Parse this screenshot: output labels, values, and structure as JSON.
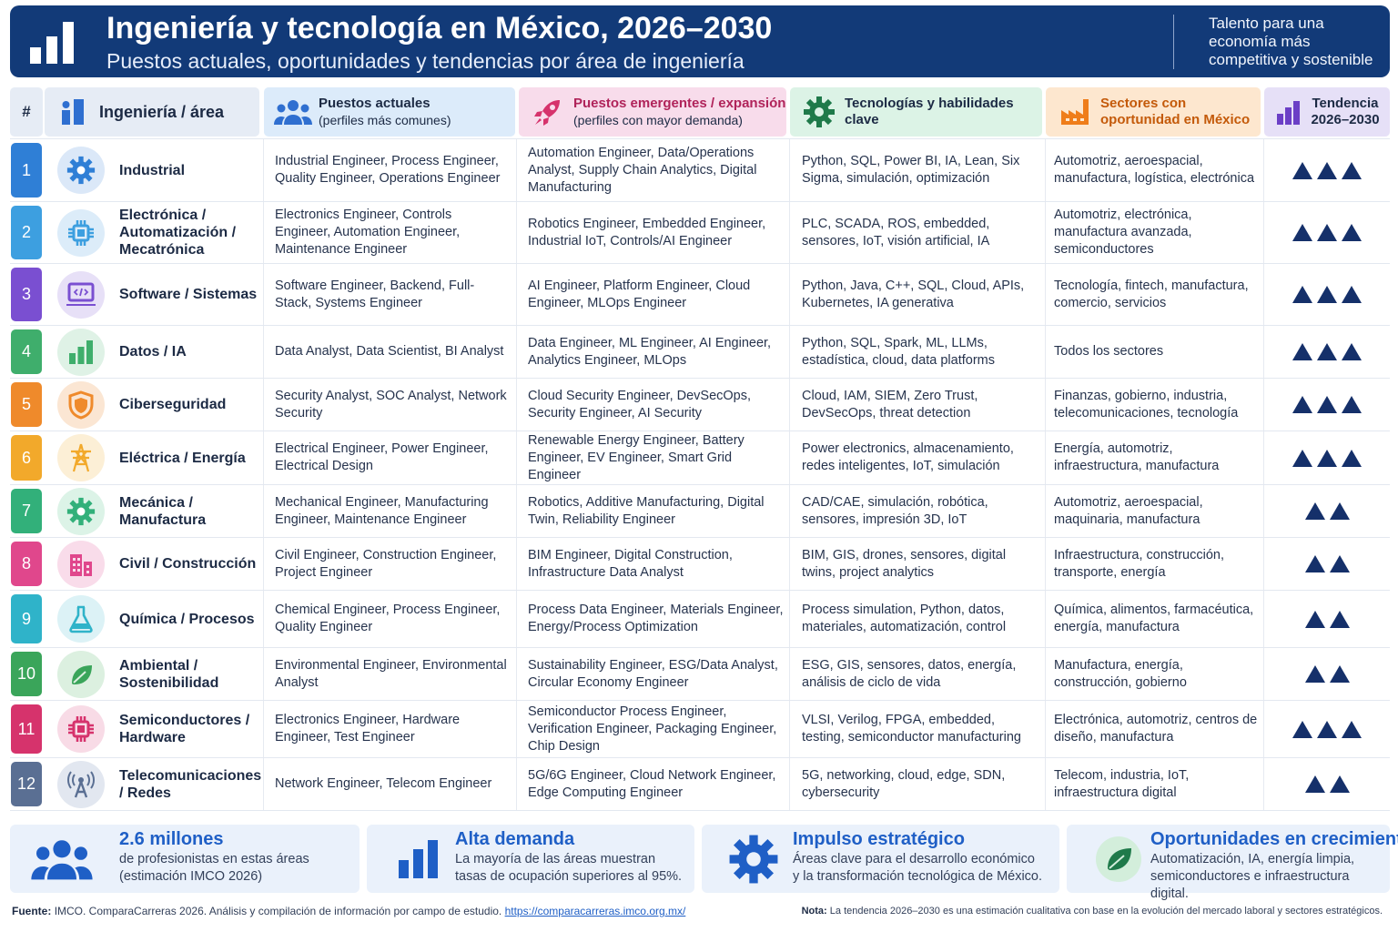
{
  "header": {
    "title": "Ingeniería y tecnología en México, 2026–2030",
    "subtitle": "Puestos actuales, oportunidades y tendencias por área de ingeniería",
    "tagline": "Talento para una economía más competitiva y sostenible"
  },
  "columns": {
    "num": "#",
    "area": "Ingeniería / área",
    "actuales": "Puestos actuales",
    "actuales_sub": "(perfiles más comunes)",
    "emergentes": "Puestos emergentes / expansión",
    "emergentes_sub": "(perfiles con mayor demanda)",
    "tecnologias": "Tecnologías y habilidades clave",
    "sectores": "Sectores con oportunidad en México",
    "tendencia": "Tendencia 2026–2030"
  },
  "colors": {
    "header_bg": "#123a78",
    "actuales_bg": "#dcebfa",
    "emergentes_bg": "#f8dceb",
    "tecnologias_bg": "#dcf3e6",
    "sectores_bg": "#fde7cf",
    "tendencia_bg": "#e6e0f7",
    "triangle": "#15306a"
  },
  "rows": [
    {
      "num": "1",
      "area": "Industrial",
      "icon": "gear-icon",
      "color": "#2f7fd6",
      "icon_bg": "#dbe8f8",
      "actuales": "Industrial Engineer, Process Engineer, Quality Engineer, Operations Engineer",
      "emergentes": "Automation Engineer, Data/Operations Analyst, Supply Chain Analytics, Digital Manufacturing",
      "tecnologias": "Python, SQL, Power BI, IA, Lean, Six Sigma, simulación, optimización",
      "sectores": "Automotriz, aeroespacial, manufactura, logística, electrónica",
      "tendencia": 3
    },
    {
      "num": "2",
      "area": "Electrónica / Automatización / Mecatrónica",
      "icon": "chip-icon",
      "color": "#3d9fe0",
      "icon_bg": "#dcecf9",
      "actuales": "Electronics Engineer, Controls Engineer, Automation Engineer, Maintenance Engineer",
      "emergentes": "Robotics Engineer, Embedded Engineer, Industrial IoT, Controls/AI Engineer",
      "tecnologias": "PLC, SCADA, ROS, embedded, sensores, IoT, visión artificial, IA",
      "sectores": "Automotriz, electrónica, manufactura avanzada, semiconductores",
      "tendencia": 3
    },
    {
      "num": "3",
      "area": "Software / Sistemas",
      "icon": "laptop-code-icon",
      "color": "#7a4fd1",
      "icon_bg": "#e7e0f7",
      "actuales": "Software Engineer, Backend, Full-Stack, Systems Engineer",
      "emergentes": "AI Engineer, Platform Engineer, Cloud Engineer, MLOps Engineer",
      "tecnologias": "Python, Java, C++, SQL, Cloud, APIs, Kubernetes, IA generativa",
      "sectores": "Tecnología, fintech, manufactura, comercio, servicios",
      "tendencia": 3
    },
    {
      "num": "4",
      "area": "Datos / IA",
      "icon": "bar-chart-icon",
      "color": "#3fae6c",
      "icon_bg": "#dff2e6",
      "actuales": "Data Analyst, Data Scientist, BI Analyst",
      "emergentes": "Data Engineer, ML Engineer, AI Engineer, Analytics Engineer, MLOps",
      "tecnologias": "Python, SQL, Spark, ML, LLMs, estadística, cloud, data platforms",
      "sectores": "Todos los sectores",
      "tendencia": 3
    },
    {
      "num": "5",
      "area": "Ciberseguridad",
      "icon": "shield-icon",
      "color": "#ef8a2b",
      "icon_bg": "#fbe6d3",
      "actuales": "Security Analyst, SOC Analyst, Network Security",
      "emergentes": "Cloud Security Engineer, DevSecOps, Security Engineer, AI Security",
      "tecnologias": "Cloud, IAM, SIEM, Zero Trust, DevSecOps, threat detection",
      "sectores": "Finanzas, gobierno, industria, telecomunicaciones, tecnología",
      "tendencia": 3
    },
    {
      "num": "6",
      "area": "Eléctrica / Energía",
      "icon": "power-tower-icon",
      "color": "#f2a92b",
      "icon_bg": "#fcefd6",
      "actuales": "Electrical Engineer, Power Engineer, Electrical Design",
      "emergentes": "Renewable Energy Engineer, Battery Engineer, EV Engineer, Smart Grid Engineer",
      "tecnologias": "Power electronics, almacenamiento, redes inteligentes, IoT, simulación",
      "sectores": "Energía, automotriz, infraestructura, manufactura",
      "tendencia": 3
    },
    {
      "num": "7",
      "area": "Mecánica / Manufactura",
      "icon": "gear-icon",
      "color": "#32b07a",
      "icon_bg": "#dcf3e7",
      "actuales": "Mechanical Engineer, Manufacturing Engineer, Maintenance Engineer",
      "emergentes": "Robotics, Additive Manufacturing, Digital Twin, Reliability Engineer",
      "tecnologias": "CAD/CAE, simulación, robótica, sensores, impresión 3D, IoT",
      "sectores": "Automotriz, aeroespacial, maquinaria, manufactura",
      "tendencia": 2
    },
    {
      "num": "8",
      "area": "Civil / Construcción",
      "icon": "building-icon",
      "color": "#e0478c",
      "icon_bg": "#f9dcea",
      "actuales": "Civil Engineer, Construction Engineer, Project Engineer",
      "emergentes": "BIM Engineer, Digital Construction, Infrastructure Data Analyst",
      "tecnologias": "BIM, GIS, drones, sensores, digital twins, project analytics",
      "sectores": "Infraestructura, construcción, transporte, energía",
      "tendencia": 2
    },
    {
      "num": "9",
      "area": "Química / Procesos",
      "icon": "flask-icon",
      "color": "#2fb3c9",
      "icon_bg": "#dcf2f6",
      "actuales": "Chemical Engineer, Process Engineer, Quality Engineer",
      "emergentes": "Process Data Engineer, Materials Engineer, Energy/Process Optimization",
      "tecnologias": "Process simulation, Python, datos, materiales, automatización, control",
      "sectores": "Química, alimentos, farmacéutica, energía, manufactura",
      "tendencia": 2
    },
    {
      "num": "10",
      "area": "Ambiental / Sostenibilidad",
      "icon": "leaf-icon",
      "color": "#3aa55a",
      "icon_bg": "#dcf0e0",
      "actuales": "Environmental Engineer, Environmental Analyst",
      "emergentes": "Sustainability Engineer, ESG/Data Analyst, Circular Economy Engineer",
      "tecnologias": "ESG, GIS, sensores, datos, energía, análisis de ciclo de vida",
      "sectores": "Manufactura, energía, construcción, gobierno",
      "tendencia": 2
    },
    {
      "num": "11",
      "area": "Semiconductores / Hardware",
      "icon": "chip-icon",
      "color": "#d6336c",
      "icon_bg": "#f8dbe6",
      "actuales": "Electronics Engineer, Hardware Engineer, Test Engineer",
      "emergentes": "Semiconductor Process Engineer, Verification Engineer, Packaging Engineer, Chip Design",
      "tecnologias": "VLSI, Verilog, FPGA, embedded, testing, semiconductor manufacturing",
      "sectores": "Electrónica, automotriz, centros de diseño, manufactura",
      "tendencia": 3
    },
    {
      "num": "12",
      "area": "Telecomunicaciones / Redes",
      "icon": "antenna-icon",
      "color": "#5a6f93",
      "icon_bg": "#e2e7f0",
      "actuales": "Network Engineer, Telecom Engineer",
      "emergentes": "5G/6G Engineer, Cloud Network Engineer, Edge Computing Engineer",
      "tecnologias": "5G, networking, cloud, edge, SDN, cybersecurity",
      "sectores": "Telecom, industria, IoT, infraestructura digital",
      "tendencia": 2
    }
  ],
  "cards": [
    {
      "title": "2.6 millones",
      "desc1": "de profesionistas en estas áreas",
      "desc2": "(estimación IMCO 2026)",
      "icon": "people-icon"
    },
    {
      "title": "Alta demanda",
      "desc1": "La mayoría de las áreas muestran",
      "desc2": "tasas de ocupación superiores al 95%.",
      "icon": "bar-chart-icon"
    },
    {
      "title": "Impulso estratégico",
      "desc1": "Áreas clave para el desarrollo económico",
      "desc2": "y la transformación tecnológica de México.",
      "icon": "gear-icon"
    },
    {
      "title": "Oportunidades en crecimiento",
      "desc1": "Automatización, IA, energía limpia,",
      "desc2": "semiconductores e infraestructura digital.",
      "icon": "leaf-icon"
    }
  ],
  "footer": {
    "source_label": "Fuente:",
    "source_text": "IMCO. ComparaCarreras 2026. Análisis y compilación de información por campo de estudio.",
    "source_url": "https://comparacarreras.imco.org.mx/",
    "note_label": "Nota:",
    "note_text": "La tendencia 2026–2030 es una estimación cualitativa con base en la evolución del mercado laboral y sectores estratégicos."
  }
}
